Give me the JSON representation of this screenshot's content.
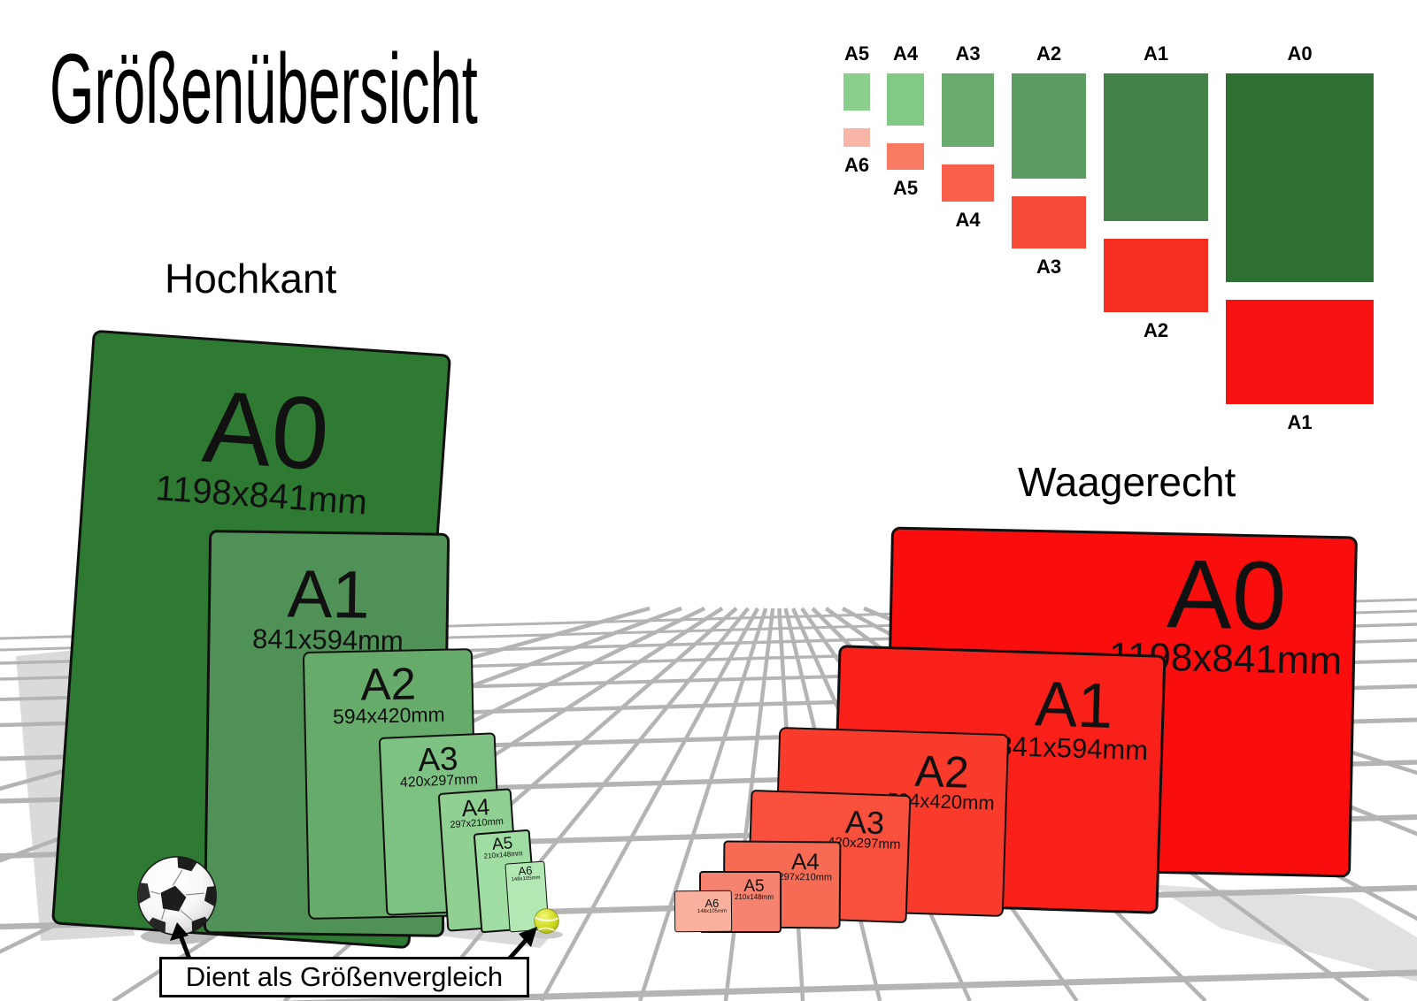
{
  "title": "Größenübersicht",
  "portrait_group": {
    "heading": "Hochkant",
    "sheets": [
      {
        "name": "A0",
        "dims": "1198x841mm"
      },
      {
        "name": "A1",
        "dims": "841x594mm"
      },
      {
        "name": "A2",
        "dims": "594x420mm"
      },
      {
        "name": "A3",
        "dims": "420x297mm"
      },
      {
        "name": "A4",
        "dims": "297x210mm"
      },
      {
        "name": "A5",
        "dims": "210x148mm"
      },
      {
        "name": "A6",
        "dims": "148x105mm"
      }
    ]
  },
  "landscape_group": {
    "heading": "Waagerecht",
    "sheets": [
      {
        "name": "A0",
        "dims": "1198x841mm"
      },
      {
        "name": "A1",
        "dims": "841x594mm"
      },
      {
        "name": "A2",
        "dims": "594x420mm"
      },
      {
        "name": "A3",
        "dims": "420x297mm"
      },
      {
        "name": "A4",
        "dims": "297x210mm"
      },
      {
        "name": "A5",
        "dims": "210x148mm"
      },
      {
        "name": "A6",
        "dims": "148x105mm"
      }
    ]
  },
  "legend": {
    "columns": [
      {
        "portrait_label": "A5",
        "landscape_label": "A6"
      },
      {
        "portrait_label": "A4",
        "landscape_label": "A5"
      },
      {
        "portrait_label": "A3",
        "landscape_label": "A4"
      },
      {
        "portrait_label": "A2",
        "landscape_label": "A3"
      },
      {
        "portrait_label": "A1",
        "landscape_label": "A2"
      },
      {
        "portrait_label": "A0",
        "landscape_label": "A1"
      }
    ]
  },
  "comparison": {
    "caption": "Dient als Größenvergleich",
    "objects": [
      "soccer-ball",
      "tennis-ball"
    ]
  },
  "colors": {
    "portrait_sheets": [
      "#2e7a33",
      "#4f9156",
      "#67ab6b",
      "#7ec283",
      "#90d093",
      "#9fdda3",
      "#b2e8b4"
    ],
    "landscape_sheets": [
      "#f90d0d",
      "#fa201a",
      "#f93b2b",
      "#f8503d",
      "#f76b55",
      "#f68370",
      "#f9b09c"
    ],
    "legend_portrait": [
      "#8ad08c",
      "#80ca83",
      "#68ab6c",
      "#5b9c62",
      "#448249",
      "#2d7032"
    ],
    "legend_landscape": [
      "#f9b5a6",
      "#f87a62",
      "#f75f4a",
      "#f74b38",
      "#f72d22",
      "#f71111"
    ],
    "grid_line": "#b4b4b4",
    "shadow": "#dadada",
    "text": "#000000"
  }
}
